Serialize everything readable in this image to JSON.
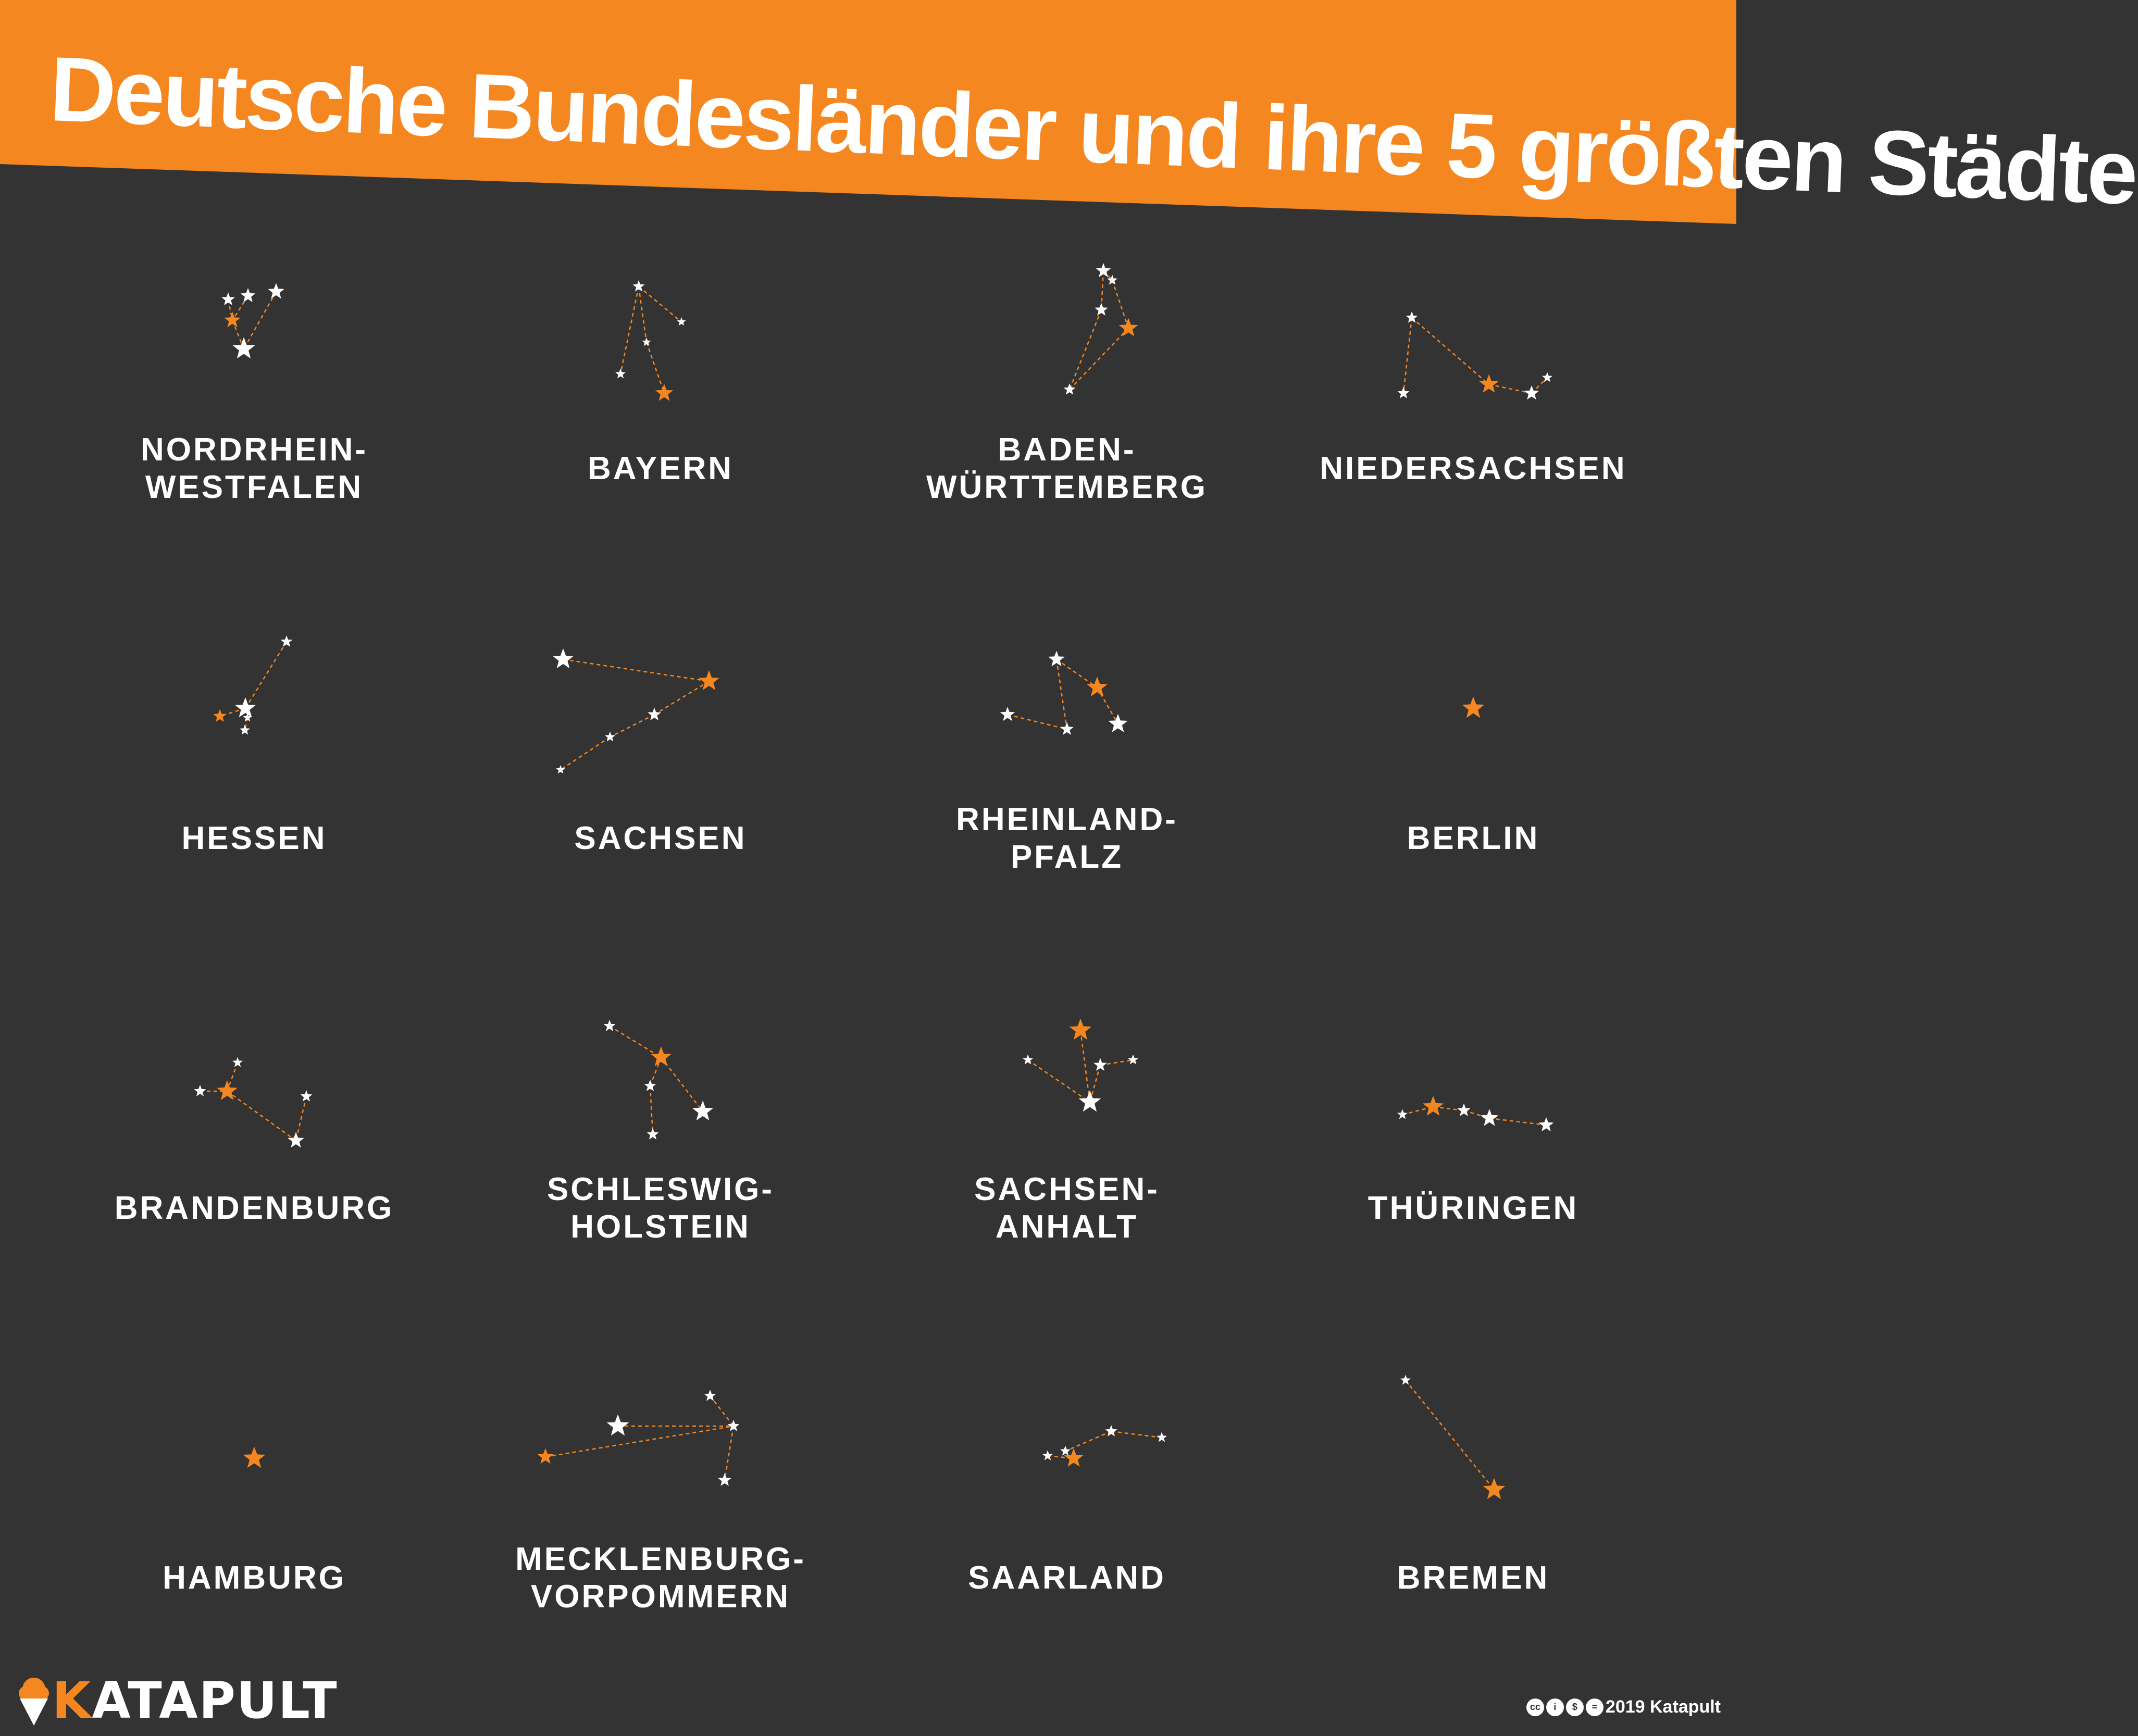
{
  "title": "Deutsche Bundesländer und ihre 5 größten Städte",
  "colors": {
    "accent": "#f58720",
    "background": "#333333",
    "star": "#ffffff"
  },
  "states": [
    {
      "label": [
        "NORDRHEIN-",
        "WESTFALEN"
      ]
    },
    {
      "label": [
        "BAYERN"
      ]
    },
    {
      "label": [
        "BADEN-",
        "WÜRTTEMBERG"
      ]
    },
    {
      "label": [
        "NIEDERSACHSEN"
      ]
    },
    {
      "label": [
        "HESSEN"
      ]
    },
    {
      "label": [
        "SACHSEN"
      ]
    },
    {
      "label": [
        "RHEINLAND-",
        "PFALZ"
      ]
    },
    {
      "label": [
        "BERLIN"
      ]
    },
    {
      "label": [
        "BRANDENBURG"
      ]
    },
    {
      "label": [
        "SCHLESWIG-",
        "HOLSTEIN"
      ]
    },
    {
      "label": [
        "SACHSEN-",
        "ANHALT"
      ]
    },
    {
      "label": [
        "THÜRINGEN"
      ]
    },
    {
      "label": [
        "HAMBURG"
      ]
    },
    {
      "label": [
        "MECKLENBURG-",
        "VORPOMMERN"
      ]
    },
    {
      "label": [
        "SAARLAND"
      ]
    },
    {
      "label": [
        "BREMEN"
      ]
    }
  ],
  "logo": {
    "brand_first": "K",
    "brand_rest": "ATAPULT",
    "icon": "ice-cream-icon"
  },
  "footer": {
    "copyright": "2019 Katapult",
    "license_icons": [
      "cc",
      "by",
      "nc",
      "nd"
    ]
  }
}
